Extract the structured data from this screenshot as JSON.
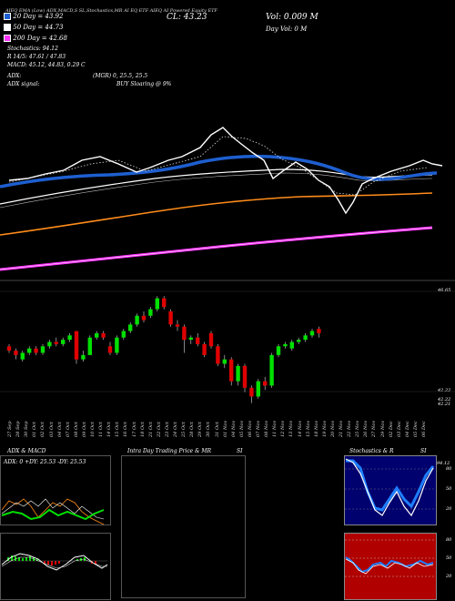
{
  "header": {
    "top_strip": "AIEQ EMA (Low) ADX,MACD,S SL,Stochastics,MR AI EQ ETF AIEQ AI Powered Equity ETF",
    "close_label": "CL: 43.23",
    "vol_label": "Vol: 0.009 M",
    "day_vol_label": "Day Vol: 0  M"
  },
  "legend": {
    "ma20": "20  Day = 43.92",
    "ma50": "50  Day = 44.73",
    "ma200": "200  Day = 42.68",
    "stochastics": "Stochastics: 94.12",
    "r_line": "R 14/5: 47.61 / 47.83",
    "macd_line": "MACD: 45.12, 44.83, 0.29 C",
    "adx_line": "ADX:",
    "mgr": "(MGR) 0, 25.5, 25.5",
    "adx_signal": "ADX  signal:",
    "buy_signal": "BUY Sloaring @ 9%"
  },
  "price_axis": {
    "top": "46.65",
    "low1": "42.22",
    "low2": "42.22",
    "low3": "42.21"
  },
  "dates": [
    "27 Sep",
    "28 Sep",
    "30 Sep",
    "01 Oct",
    "02 Oct",
    "03 Oct",
    "04 Oct",
    "07 Oct",
    "08 Oct",
    "09 Oct",
    "10 Oct",
    "11 Oct",
    "14 Oct",
    "15 Oct",
    "16 Oct",
    "17 Oct",
    "18 Oct",
    "21 Oct",
    "22 Oct",
    "23 Oct",
    "24 Oct",
    "25 Oct",
    "28 Oct",
    "29 Oct",
    "30 Oct",
    "31 Oct",
    "01 Nov",
    "04 Nov",
    "05 Nov",
    "06 Nov",
    "07 Nov",
    "08 Nov",
    "11 Nov",
    "12 Nov",
    "13 Nov",
    "14 Nov",
    "15 Nov",
    "18 Nov",
    "19 Nov",
    "20 Nov",
    "21 Nov",
    "22 Nov",
    "25 Nov",
    "26 Nov",
    "27 Nov",
    "29 Nov",
    "02 Dec",
    "03 Dec",
    "04 Dec",
    "05 Dec",
    "06 Dec"
  ],
  "panels": {
    "adx_title": "ADX  & MACD",
    "adx_values": "ADX: 0  +DY: 25.53  -DY: 25.53",
    "intraday_title": "Intra  Day Trading Price  & MR",
    "intraday_si": "SI",
    "stoch_title": "Stochastics & R",
    "stoch_si": "SI",
    "stoch_value": "94.12",
    "stoch_ticks": [
      "80",
      "50",
      "20"
    ],
    "mr_ticks": [
      "80",
      "50",
      "20"
    ]
  },
  "colors": {
    "up": "#00e000",
    "down": "#e00000",
    "ma20": "#1e5fd0",
    "ma200": "#ff33ff",
    "orange": "#ff8c1a",
    "stoch_bg": "#00006e",
    "mr_bg": "#b00000"
  }
}
